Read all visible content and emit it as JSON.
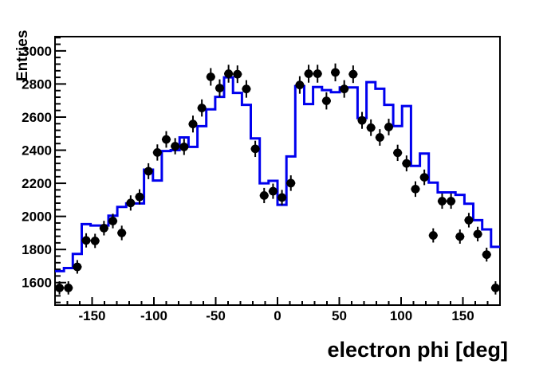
{
  "chart_data": {
    "type": "bar",
    "subtype": "step-histogram-with-data-points",
    "title": "",
    "xlabel": "electron phi [deg]",
    "ylabel": "Entries",
    "xlim": [
      -180,
      180
    ],
    "ylim": [
      1464,
      3086
    ],
    "grid": false,
    "legend": "none",
    "background": "#ffffff",
    "x_major_ticks": [
      -150,
      -100,
      -50,
      0,
      50,
      100,
      150
    ],
    "x_tick_labels": [
      "-150",
      "-100",
      "-50",
      "0",
      "50",
      "100",
      "150"
    ],
    "x_minor_step": 10,
    "y_major_ticks": [
      1600,
      1800,
      2000,
      2200,
      2400,
      2600,
      2800,
      3000
    ],
    "y_tick_labels": [
      "1600",
      "1800",
      "2000",
      "2200",
      "2400",
      "2600",
      "2800",
      "3000"
    ],
    "y_minor_step": 40,
    "n_bins": 50,
    "bin_width_deg": 7.2,
    "bin_centers": [
      -176.4,
      -169.2,
      -162,
      -154.8,
      -147.6,
      -140.4,
      -133.2,
      -126,
      -118.8,
      -111.6,
      -104.4,
      -97.2,
      -90,
      -82.8,
      -75.6,
      -68.4,
      -61.2,
      -54,
      -46.8,
      -39.6,
      -32.4,
      -25.2,
      -18,
      -10.8,
      -3.6,
      3.6,
      10.8,
      18,
      25.2,
      32.4,
      39.6,
      46.8,
      54,
      61.2,
      68.4,
      75.6,
      82.8,
      90,
      97.2,
      104.4,
      111.6,
      118.8,
      126,
      133.2,
      140.4,
      147.6,
      154.8,
      162,
      169.2,
      176.4
    ],
    "series": [
      {
        "name": "histogram-line",
        "style": "step-line",
        "color": "#0000ee",
        "line_width": 3,
        "values": [
          1669,
          1688,
          1773,
          1953,
          1945,
          1945,
          2004,
          2057,
          2078,
          2078,
          2282,
          2217,
          2395,
          2400,
          2477,
          2420,
          2545,
          2647,
          2722,
          2840,
          2746,
          2674,
          2471,
          2200,
          2215,
          2070,
          2362,
          2787,
          2679,
          2782,
          2763,
          2750,
          2779,
          2779,
          2594,
          2811,
          2771,
          2674,
          2546,
          2667,
          2305,
          2380,
          2204,
          2145,
          2145,
          2130,
          2076,
          1977,
          1921,
          1816
        ]
      },
      {
        "name": "data-points",
        "style": "filled-circle-with-error-bars",
        "color": "#000000",
        "marker_radius": 5.4,
        "values": [
          1568,
          1568,
          1695,
          1855,
          1852,
          1929,
          1972,
          1900,
          2081,
          2118,
          2273,
          2386,
          2465,
          2424,
          2420,
          2558,
          2655,
          2843,
          2775,
          2862,
          2859,
          2770,
          2408,
          2126,
          2152,
          2114,
          2201,
          2794,
          2862,
          2862,
          2698,
          2870,
          2770,
          2859,
          2580,
          2536,
          2477,
          2540,
          2384,
          2320,
          2165,
          2236,
          1885,
          2092,
          2092,
          1878,
          1977,
          1893,
          1769,
          1568
        ],
        "errors": [
          40,
          40,
          41,
          43,
          43,
          44,
          44,
          44,
          46,
          46,
          48,
          49,
          50,
          49,
          49,
          51,
          52,
          53,
          53,
          54,
          53,
          53,
          49,
          46,
          46,
          46,
          47,
          53,
          54,
          54,
          52,
          54,
          53,
          53,
          51,
          50,
          50,
          50,
          49,
          48,
          47,
          47,
          43,
          46,
          46,
          43,
          44,
          44,
          42,
          40
        ]
      }
    ]
  }
}
